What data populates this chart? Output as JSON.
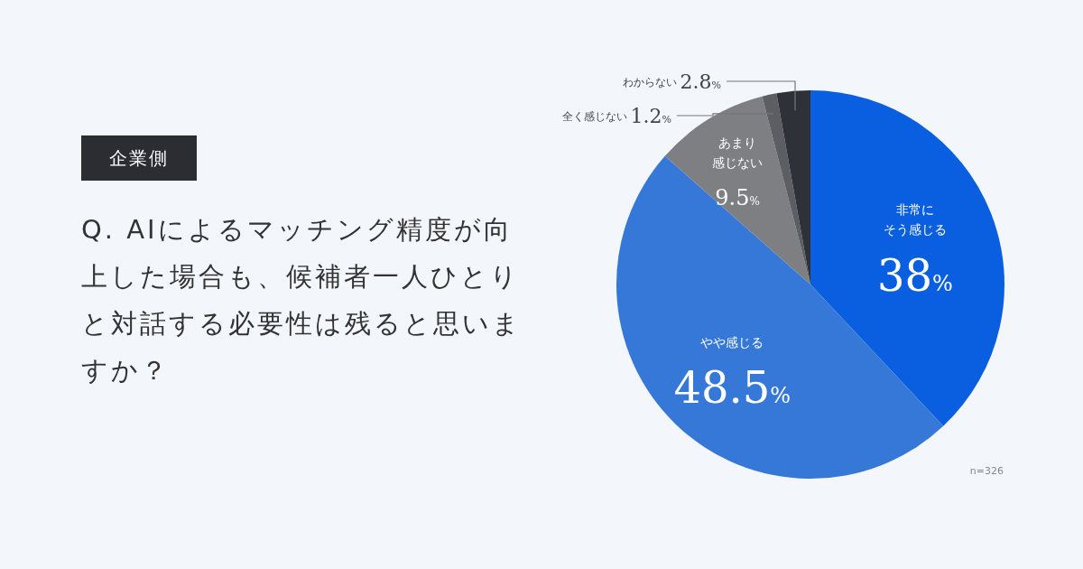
{
  "chart_data": {
    "type": "pie",
    "subtitle": "企業側",
    "title": "Q. AIによるマッチング精度が向上した場合も、候補者一人ひとりと対話する必要性は残ると思いますか？",
    "categories": [
      "非常にそう感じる",
      "やや感じる",
      "あまり感じない",
      "全く感じない",
      "わからない"
    ],
    "values": [
      38,
      48.5,
      9.5,
      1.2,
      2.8
    ],
    "value_labels": [
      "38%",
      "48.5%",
      "9.5%",
      "1.2%",
      "2.8%"
    ],
    "colors": [
      "#0a5fe0",
      "#3578d8",
      "#7e7f83",
      "#5c5e64",
      "#2f3139"
    ],
    "annotations": [
      "n=326"
    ]
  }
}
